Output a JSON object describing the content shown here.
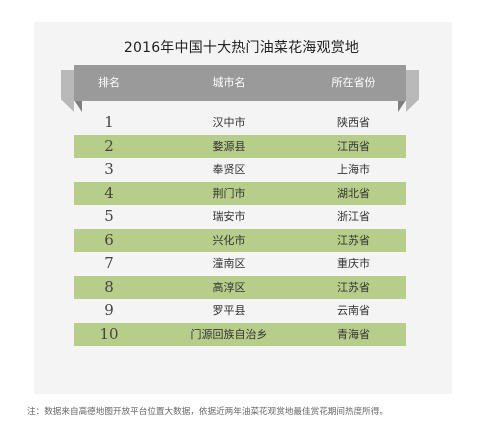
{
  "title": "2016年中国十大热门油菜花海观赏地",
  "table": {
    "headers": [
      "排名",
      "城市名",
      "所在省份"
    ],
    "rows": [
      {
        "rank": "1",
        "city": "汉中市",
        "province": "陕西省"
      },
      {
        "rank": "2",
        "city": "婺源县",
        "province": "江西省"
      },
      {
        "rank": "3",
        "city": "奉贤区",
        "province": "上海市"
      },
      {
        "rank": "4",
        "city": "荆门市",
        "province": "湖北省"
      },
      {
        "rank": "5",
        "city": "瑞安市",
        "province": "浙江省"
      },
      {
        "rank": "6",
        "city": "兴化市",
        "province": "江苏省"
      },
      {
        "rank": "7",
        "city": "潼南区",
        "province": "重庆市"
      },
      {
        "rank": "8",
        "city": "高淳区",
        "province": "江苏省"
      },
      {
        "rank": "9",
        "city": "罗平县",
        "province": "云南省"
      },
      {
        "rank": "10",
        "city": "门源回族自治乡",
        "province": "青海省"
      }
    ]
  },
  "footnote": "注：数据来自高德地图开放平台位置大数据，依据近两年油菜花观赏地最佳赏花期间热度所得。",
  "colors": {
    "header_bg": "#9a9a9a",
    "highlight_row": "#b7ce8b",
    "panel_bg": "#f4f4f4"
  }
}
